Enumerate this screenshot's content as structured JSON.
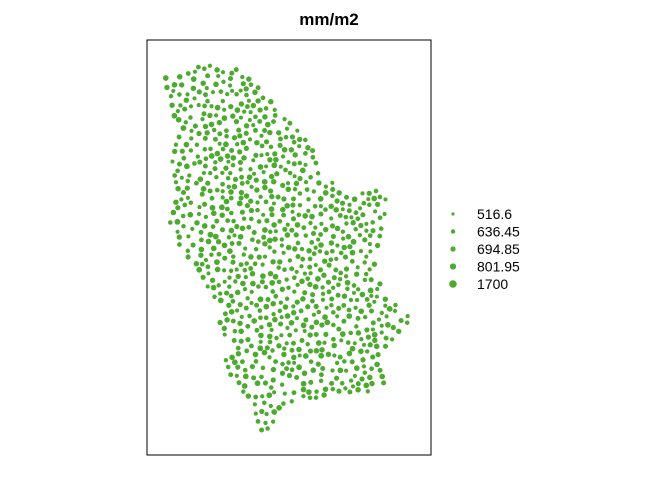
{
  "map": {
    "title": "mm/m2",
    "point_color": "#4caa2f",
    "frame_color": "#000000",
    "marker_shape": "circle"
  },
  "legend": {
    "items": [
      {
        "label": "516.6",
        "value": 516.6
      },
      {
        "label": "636.45",
        "value": 636.45
      },
      {
        "label": "694.85",
        "value": 694.85
      },
      {
        "label": "801.95",
        "value": 801.95
      },
      {
        "label": "1700",
        "value": 1700
      }
    ]
  }
}
